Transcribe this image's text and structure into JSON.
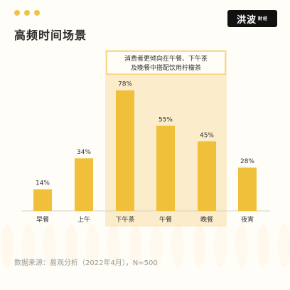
{
  "header": {
    "title": "高频时间场景",
    "logo_text": "洪波",
    "logo_sub": "财经"
  },
  "callout": {
    "line1": "消费者更倾向在午餐、下午茶",
    "line2": "及晚餐中搭配饮用柠檬茶"
  },
  "footer": {
    "source": "数据来源：易观分析（2022年4月），N=500"
  },
  "colors": {
    "bar": "#f0c03a",
    "highlight_bg": "#fbeccb",
    "highlight_border": "#f0c03a",
    "dots": "#efc24b"
  },
  "chart_data": {
    "type": "bar",
    "categories": [
      "早餐",
      "上午",
      "下午茶",
      "午餐",
      "晚餐",
      "夜宵"
    ],
    "values": [
      14,
      34,
      78,
      55,
      45,
      28
    ],
    "value_labels": [
      "14%",
      "34%",
      "78%",
      "55%",
      "45%",
      "28%"
    ],
    "highlighted_categories": [
      "下午茶",
      "午餐",
      "晚餐"
    ],
    "unit": "%",
    "ylim": [
      0,
      100
    ],
    "title": "",
    "xlabel": "",
    "ylabel": "",
    "grid": false
  }
}
